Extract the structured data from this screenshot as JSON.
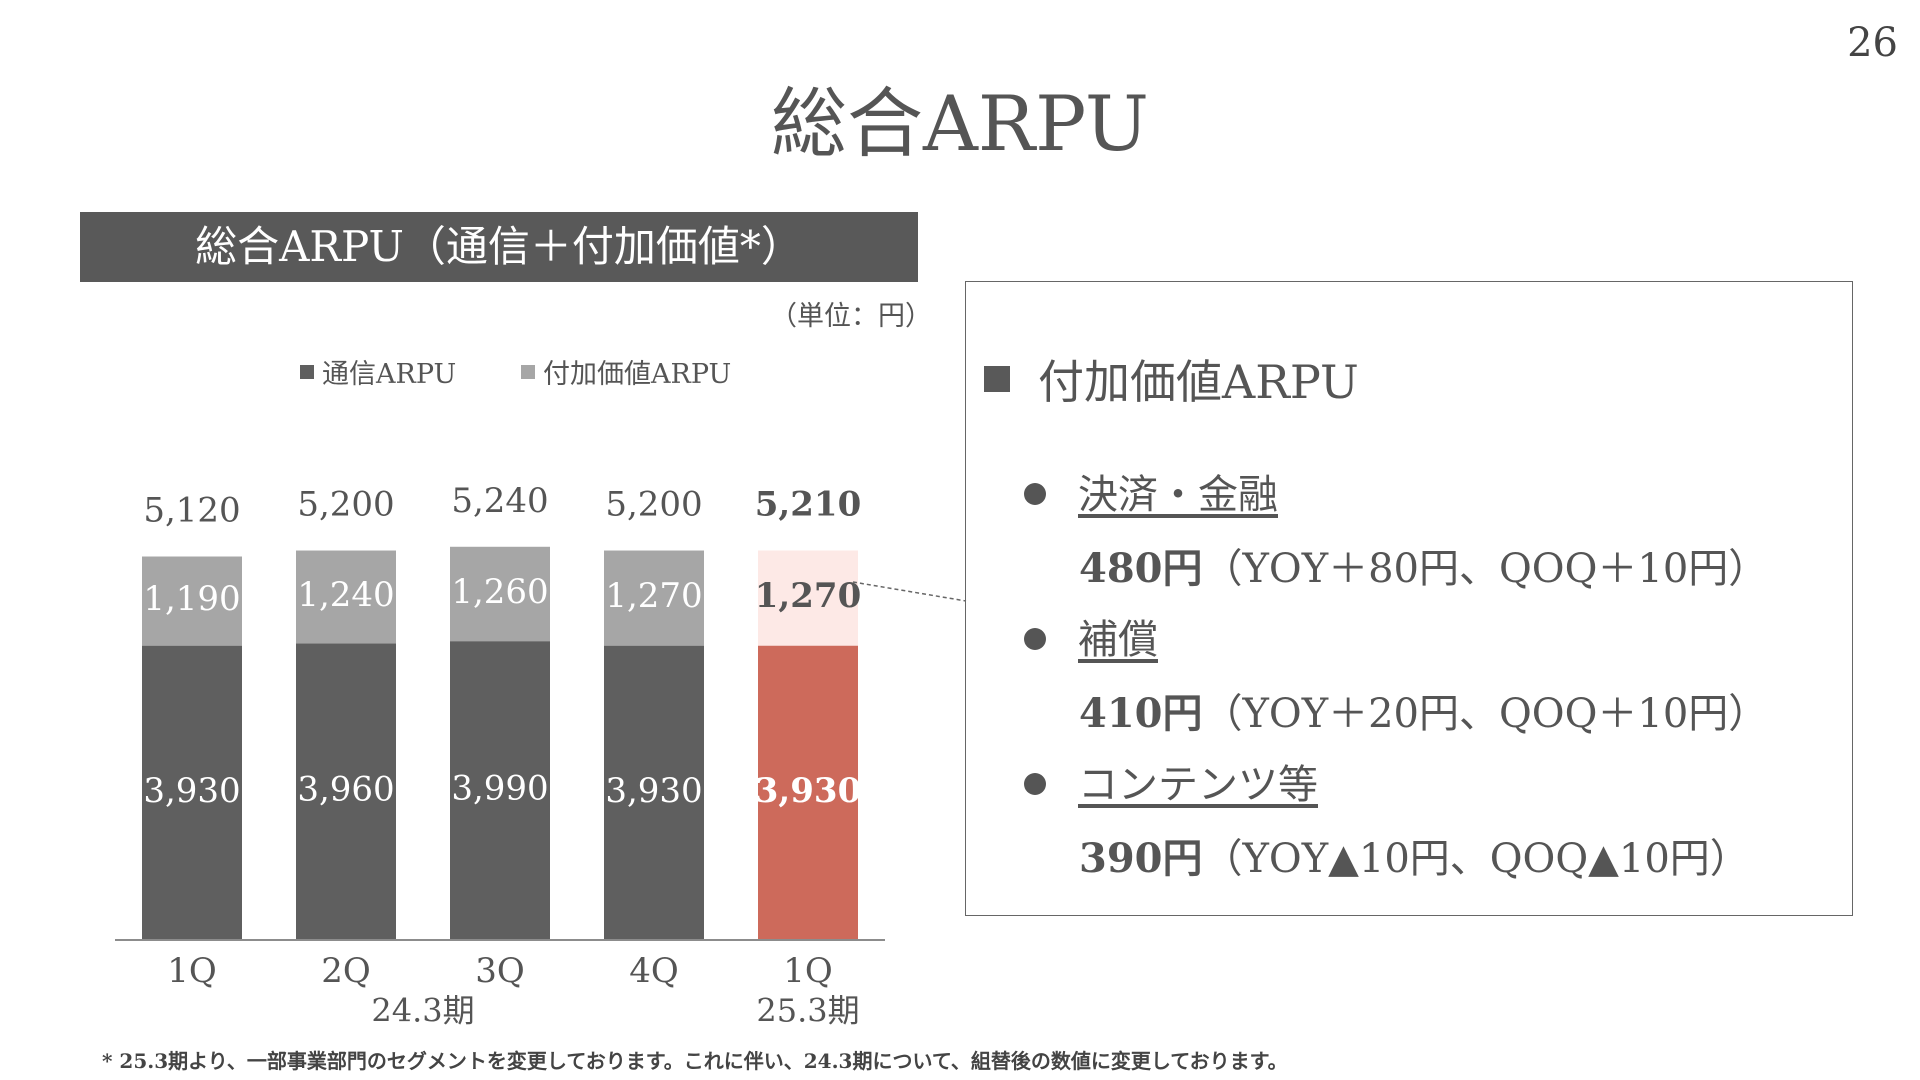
{
  "page_number": "26",
  "title": "総合ARPU",
  "chart_heading": "総合ARPU（通信＋付加価値*）",
  "unit": "（単位：円）",
  "footnote": "* 25.3期より、一部事業部門のセグメントを変更しております。これに伴い、24.3期について、組替後の数値に変更しております。",
  "colors": {
    "comm": "#5f5f5f",
    "value_added": "#a6a6a6",
    "comm_highlight": "#cd6a5b",
    "value_added_highlight": "#fde9e6",
    "banner": "#595959"
  },
  "chart_data": {
    "type": "bar",
    "stacked": true,
    "categories": [
      "1Q",
      "2Q",
      "3Q",
      "4Q",
      "1Q"
    ],
    "period_labels": [
      {
        "label": "24.3期",
        "applies_to": [
          "1Q",
          "2Q",
          "3Q",
          "4Q"
        ]
      },
      {
        "label": "25.3期",
        "applies_to": [
          "1Q"
        ]
      }
    ],
    "series": [
      {
        "name": "通信ARPU",
        "values": [
          3930,
          3960,
          3990,
          3930,
          3930
        ],
        "labels": [
          "3,930",
          "3,960",
          "3,990",
          "3,930",
          "3,930"
        ]
      },
      {
        "name": "付加価値ARPU",
        "values": [
          1190,
          1240,
          1260,
          1270,
          1270
        ],
        "labels": [
          "1,190",
          "1,240",
          "1,260",
          "1,270",
          "1,270"
        ]
      }
    ],
    "totals": [
      5120,
      5200,
      5240,
      5200,
      5210
    ],
    "total_labels": [
      "5,120",
      "5,200",
      "5,240",
      "5,200",
      "5,210"
    ],
    "highlight_index": 4,
    "legend_position": "top",
    "grid": false
  },
  "info_box": {
    "heading": "付加価値ARPU",
    "items": [
      {
        "name": "決済・金融",
        "value": "480円",
        "detail": "（YOY＋80円、QOQ＋10円）"
      },
      {
        "name": "補償",
        "value": "410円",
        "detail": "（YOY＋20円、QOQ＋10円）"
      },
      {
        "name": "コンテンツ等",
        "value": "390円",
        "detail": "（YOY▲10円、QOQ▲10円）"
      }
    ]
  }
}
